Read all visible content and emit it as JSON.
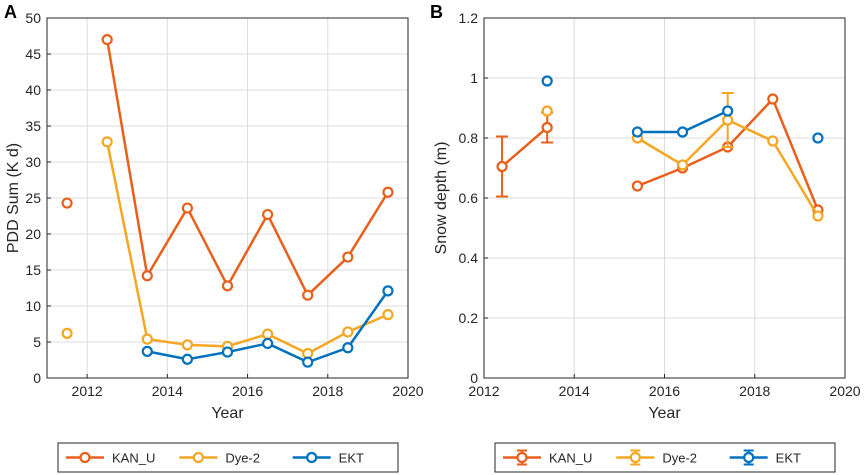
{
  "chart_data": [
    {
      "panel": "A",
      "type": "line",
      "xlabel": "Year",
      "ylabel": "PDD Sum (K d)",
      "xlim": [
        2011,
        2020
      ],
      "ylim": [
        0,
        50
      ],
      "xticks": [
        2012,
        2014,
        2016,
        2018,
        2020
      ],
      "yticks": [
        0,
        5,
        10,
        15,
        20,
        25,
        30,
        35,
        40,
        45,
        50
      ],
      "grid": true,
      "series": [
        {
          "name": "KAN_U",
          "color": "#E8601C",
          "x": [
            2011.5,
            2012.5,
            2013.5,
            2014.5,
            2015.5,
            2016.5,
            2017.5,
            2018.5,
            2019.5
          ],
          "y": [
            24.3,
            47,
            14.2,
            23.6,
            12.8,
            22.7,
            11.5,
            16.8,
            25.8
          ],
          "gaps_after": [
            0
          ]
        },
        {
          "name": "Dye-2",
          "color": "#F5A623",
          "x": [
            2011.5,
            2012.5,
            2013.5,
            2014.5,
            2015.5,
            2016.5,
            2017.5,
            2018.5,
            2019.5
          ],
          "y": [
            6.2,
            32.8,
            5.4,
            4.6,
            4.4,
            6.1,
            3.4,
            6.4,
            8.8
          ],
          "gaps_after": [
            0
          ]
        },
        {
          "name": "EKT",
          "color": "#0072BD",
          "x": [
            2013.5,
            2014.5,
            2015.5,
            2016.5,
            2017.5,
            2018.5,
            2019.5
          ],
          "y": [
            3.7,
            2.6,
            3.6,
            4.8,
            2.2,
            4.2,
            12.1
          ],
          "gaps_after": []
        }
      ],
      "legend": {
        "placement": "bottom",
        "entries": [
          "KAN_U",
          "Dye-2",
          "EKT"
        ]
      }
    },
    {
      "panel": "B",
      "type": "line",
      "xlabel": "Year",
      "ylabel": "Snow depth (m)",
      "xlim": [
        2012,
        2020
      ],
      "ylim": [
        0,
        1.2
      ],
      "xticks": [
        2012,
        2014,
        2016,
        2018,
        2020
      ],
      "yticks": [
        0,
        0.2,
        0.4,
        0.6,
        0.8,
        1,
        1.2
      ],
      "ytick_labels": [
        "0",
        "0.2",
        "0.4",
        "0.6",
        "0.8",
        "1",
        "1.2"
      ],
      "grid": true,
      "series": [
        {
          "name": "KAN_U",
          "color": "#E8601C",
          "x": [
            2012.4,
            2013.4,
            2015.4,
            2016.4,
            2017.4,
            2018.4,
            2019.4
          ],
          "y": [
            0.705,
            0.835,
            0.64,
            0.7,
            0.77,
            0.93,
            0.56
          ],
          "err": [
            0.1,
            0.05,
            0,
            0,
            0,
            0,
            0
          ],
          "gaps_after": [
            1
          ]
        },
        {
          "name": "Dye-2",
          "color": "#F5A623",
          "x": [
            2013.4,
            2015.4,
            2016.4,
            2017.4,
            2018.4,
            2019.4
          ],
          "y": [
            0.89,
            0.8,
            0.71,
            0.86,
            0.79,
            0.54
          ],
          "err": [
            0,
            0,
            0,
            0.09,
            0,
            0
          ],
          "gaps_after": [
            0
          ]
        },
        {
          "name": "EKT",
          "color": "#0072BD",
          "x": [
            2013.4,
            2015.4,
            2016.4,
            2017.4,
            2019.4
          ],
          "y": [
            0.99,
            0.82,
            0.82,
            0.89,
            0.8
          ],
          "err": [
            0,
            0,
            0,
            0,
            0
          ],
          "gaps_after": [
            0,
            3
          ]
        }
      ],
      "legend": {
        "placement": "bottom",
        "entries": [
          "KAN_U",
          "Dye-2",
          "EKT"
        ]
      }
    }
  ]
}
